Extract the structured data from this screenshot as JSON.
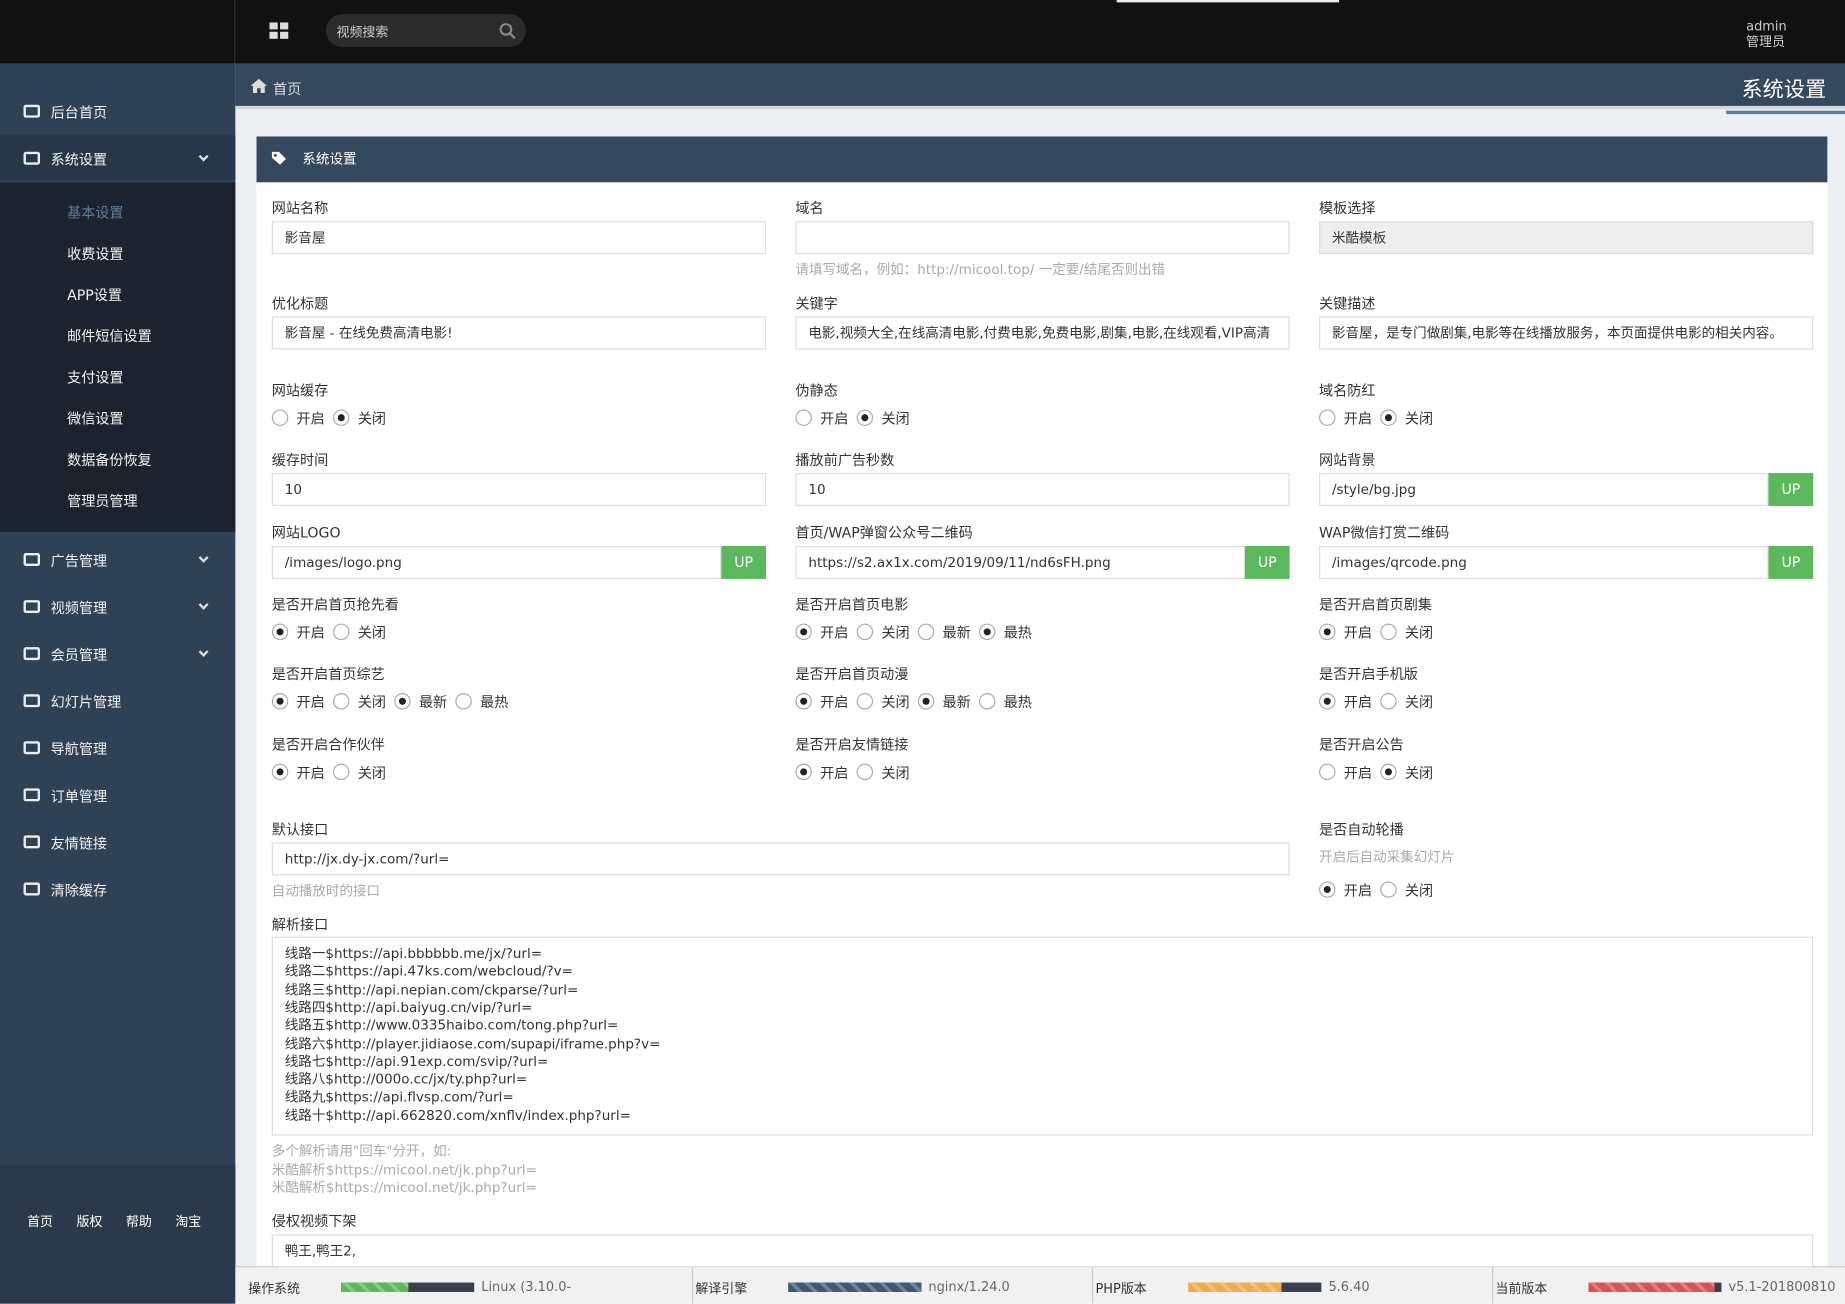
{
  "topbar": {
    "search_placeholder": "视频搜索",
    "user": "admin",
    "role": "管理员"
  },
  "sidebar": {
    "menu": [
      {
        "label": "后台首页"
      },
      {
        "label": "系统设置",
        "expandable": true,
        "active": true,
        "children": [
          "基本设置",
          "收费设置",
          "APP设置",
          "邮件短信设置",
          "支付设置",
          "微信设置",
          "数据备份恢复",
          "管理员管理"
        ],
        "current_child": 0
      },
      {
        "label": "广告管理",
        "expandable": true
      },
      {
        "label": "视频管理",
        "expandable": true
      },
      {
        "label": "会员管理",
        "expandable": true
      },
      {
        "label": "幻灯片管理"
      },
      {
        "label": "导航管理"
      },
      {
        "label": "订单管理"
      },
      {
        "label": "友情链接"
      },
      {
        "label": "清除缓存"
      }
    ],
    "footer_links": [
      "首页",
      "版权",
      "帮助",
      "淘宝"
    ]
  },
  "breadcrumb": {
    "home": "首页",
    "page_title": "系统设置"
  },
  "panel": {
    "title": "系统设置",
    "rows": [
      [
        {
          "type": "text",
          "label": "网站名称",
          "value": "影音屋"
        },
        {
          "type": "text",
          "label": "域名",
          "hint": "请填写域名，例如：http://micool.top/ 一定要/结尾否则出错"
        },
        {
          "type": "text",
          "label": "模板选择",
          "value": "米酷模板",
          "readonly": true
        }
      ],
      [
        {
          "type": "text",
          "label": "优化标题",
          "value": "影音屋 - 在线免费高清电影!"
        },
        {
          "type": "text",
          "label": "关键字",
          "value": "电影,视频大全,在线高清电影,付费电影,免费电影,剧集,电影,在线观看,VIP高清"
        },
        {
          "type": "text",
          "label": "关键描述",
          "value": "影音屋，是专门做剧集,电影等在线播放服务，本页面提供电影的相关内容。"
        }
      ],
      [
        {
          "type": "radio",
          "label": "网站缓存",
          "options": [
            "开启",
            "关闭"
          ],
          "checked": [
            1
          ]
        },
        {
          "type": "radio",
          "label": "伪静态",
          "options": [
            "开启",
            "关闭"
          ],
          "checked": [
            1
          ]
        },
        {
          "type": "radio",
          "label": "域名防红",
          "options": [
            "开启",
            "关闭"
          ],
          "checked": [
            1
          ]
        }
      ],
      [
        {
          "type": "text",
          "label": "缓存时间",
          "value": "10"
        },
        {
          "type": "text",
          "label": "播放前广告秒数",
          "value": "10"
        },
        {
          "type": "text",
          "label": "网站背景",
          "value": "/style/bg.jpg",
          "button": "UP"
        }
      ],
      [
        {
          "type": "text",
          "label": "网站LOGO",
          "value": "/images/logo.png",
          "button": "UP"
        },
        {
          "type": "text",
          "label": "首页/WAP弹窗公众号二维码",
          "value": "https://s2.ax1x.com/2019/09/11/nd6sFH.png",
          "button": "UP"
        },
        {
          "type": "text",
          "label": "WAP微信打赏二维码",
          "value": "/images/qrcode.png",
          "button": "UP"
        }
      ],
      [
        {
          "type": "radio",
          "label": "是否开启首页抢先看",
          "options": [
            "开启",
            "关闭"
          ],
          "checked": [
            0
          ]
        },
        {
          "type": "radio",
          "label": "是否开启首页电影",
          "options": [
            "开启",
            "关闭",
            "最新",
            "最热"
          ],
          "checked": [
            0,
            3
          ]
        },
        {
          "type": "radio",
          "label": "是否开启首页剧集",
          "options": [
            "开启",
            "关闭"
          ],
          "checked": [
            0
          ]
        }
      ],
      [
        {
          "type": "radio",
          "label": "是否开启首页综艺",
          "options": [
            "开启",
            "关闭",
            "最新",
            "最热"
          ],
          "checked": [
            0,
            2
          ]
        },
        {
          "type": "radio",
          "label": "是否开启首页动漫",
          "options": [
            "开启",
            "关闭",
            "最新",
            "最热"
          ],
          "checked": [
            0,
            2
          ]
        },
        {
          "type": "radio",
          "label": "是否开启手机版",
          "options": [
            "开启",
            "关闭"
          ],
          "checked": [
            0
          ]
        }
      ],
      [
        {
          "type": "radio",
          "label": "是否开启合作伙伴",
          "options": [
            "开启",
            "关闭"
          ],
          "checked": [
            0
          ]
        },
        {
          "type": "radio",
          "label": "是否开启友情链接",
          "options": [
            "开启",
            "关闭"
          ],
          "checked": [
            0
          ]
        },
        {
          "type": "radio",
          "label": "是否开启公告",
          "options": [
            "开启",
            "关闭"
          ],
          "checked": [
            1
          ]
        }
      ],
      [
        {
          "type": "text",
          "label": "默认接口",
          "value": "http://jx.dy-jx.com/?url=",
          "hint": "自动播放时的接口"
        },
        {
          "type": "radio",
          "label": "是否自动轮播",
          "hint": "开启后自动采集幻灯片",
          "options": [
            "开启",
            "关闭"
          ],
          "checked": [
            0
          ]
        }
      ],
      [
        {
          "type": "textarea",
          "label": "解析接口",
          "lines": [
            "线路一$https://api.bbbbbb.me/jx/?url=",
            "线路二$https://api.47ks.com/webcloud/?v=",
            "线路三$http://api.nepian.com/ckparse/?url=",
            "线路四$http://api.baiyug.cn/vip/?url=",
            "线路五$http://www.0335haibo.com/tong.php?url=",
            "线路六$http://player.jidiaose.com/supapi/iframe.php?v=",
            "线路七$http://api.91exp.com/svip/?url=",
            "线路八$http://000o.cc/jx/ty.php?url=",
            "线路九$https://api.flvsp.com/?url=",
            "线路十$http://api.662820.com/xnflv/index.php?url="
          ],
          "hint": [
            "多个解析请用\"回车\"分开，如:",
            "米酷解析$https://micool.net/jk.php?url=",
            "米酷解析$https://micool.net/jk.php?url="
          ]
        }
      ],
      [
        {
          "type": "text",
          "label": "侵权视频下架",
          "value": "鸭王,鸭王2,"
        }
      ]
    ]
  },
  "status_bar": [
    {
      "label": "操作系统",
      "value": "Linux (3.10.0-",
      "percent": 50,
      "color": "#5cb85c"
    },
    {
      "label": "解译引擎",
      "value": "nginx/1.24.0",
      "percent": 100,
      "color": "#3c5a74"
    },
    {
      "label": "PHP版本",
      "value": "5.6.40",
      "percent": 70,
      "color": "#f0ad4e"
    },
    {
      "label": "当前版本",
      "value": "v5.1-201800810",
      "percent": 95,
      "color": "#d9534f"
    }
  ]
}
